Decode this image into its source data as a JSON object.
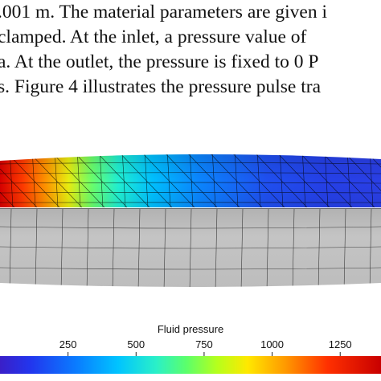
{
  "text_lines": [
    ".001 m. The material parameters are given i",
    "clamped.  At the inlet, a pressure value of",
    "a.  At the outlet, the pressure is fixed to 0 P",
    " s. Figure 4 illustrates the pressure pulse tra"
  ],
  "colorbar": {
    "title": "Fluid pressure",
    "range": [
      0,
      1400
    ],
    "ticks": [
      {
        "value": 250,
        "label": "250"
      },
      {
        "value": 500,
        "label": "500"
      },
      {
        "value": 750,
        "label": "750"
      },
      {
        "value": 1000,
        "label": "1000"
      },
      {
        "value": 1250,
        "label": "1250"
      }
    ],
    "colormap": "jet"
  },
  "colors": {
    "solid_surface": "#bdbdbd",
    "mesh_line": "#000000"
  }
}
